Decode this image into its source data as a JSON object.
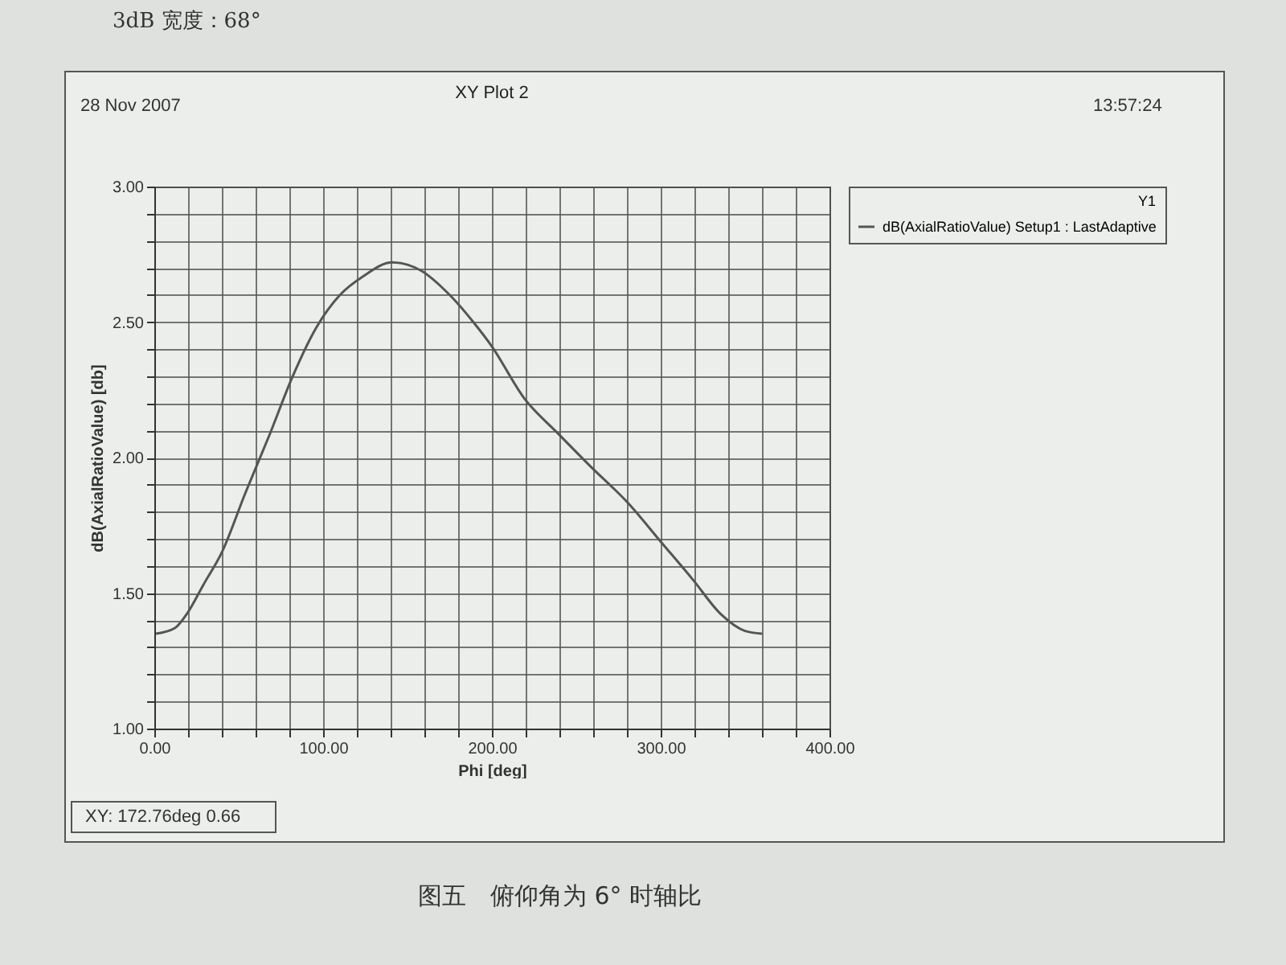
{
  "chart_data": {
    "type": "line",
    "title": "XY Plot 2",
    "xlabel": "Phi [deg]",
    "ylabel": "dB(AxialRatioValue) [db]",
    "legend_title": "Y1",
    "annotations": [
      "3dB 宽度：68°",
      "28 Nov 2007",
      "13:57:24",
      "XY: 172.76deg 0.66",
      "图五　俯仰角为 6° 时轴比"
    ],
    "xlim": [
      0,
      400
    ],
    "ylim": [
      1,
      3
    ],
    "xticks": [
      {
        "value": 0,
        "label": "0.00"
      },
      {
        "value": 20,
        "label": null
      },
      {
        "value": 40,
        "label": null
      },
      {
        "value": 60,
        "label": null
      },
      {
        "value": 80,
        "label": null
      },
      {
        "value": 100,
        "label": "100.00"
      },
      {
        "value": 120,
        "label": null
      },
      {
        "value": 140,
        "label": null
      },
      {
        "value": 160,
        "label": null
      },
      {
        "value": 180,
        "label": null
      },
      {
        "value": 200,
        "label": "200.00"
      },
      {
        "value": 220,
        "label": null
      },
      {
        "value": 240,
        "label": null
      },
      {
        "value": 260,
        "label": null
      },
      {
        "value": 280,
        "label": null
      },
      {
        "value": 300,
        "label": "300.00"
      },
      {
        "value": 320,
        "label": null
      },
      {
        "value": 340,
        "label": null
      },
      {
        "value": 360,
        "label": null
      },
      {
        "value": 380,
        "label": null
      },
      {
        "value": 400,
        "label": "400.00"
      }
    ],
    "yticks": [
      {
        "value": 1,
        "label": "1.00"
      },
      {
        "value": 1.1,
        "label": null
      },
      {
        "value": 1.2,
        "label": null
      },
      {
        "value": 1.3,
        "label": null
      },
      {
        "value": 1.4,
        "label": null
      },
      {
        "value": 1.5,
        "label": "1.50"
      },
      {
        "value": 1.6,
        "label": null
      },
      {
        "value": 1.7,
        "label": null
      },
      {
        "value": 1.8,
        "label": null
      },
      {
        "value": 1.9,
        "label": null
      },
      {
        "value": 2,
        "label": "2.00"
      },
      {
        "value": 2.1,
        "label": null
      },
      {
        "value": 2.2,
        "label": null
      },
      {
        "value": 2.3,
        "label": null
      },
      {
        "value": 2.4,
        "label": null
      },
      {
        "value": 2.5,
        "label": "2.50"
      },
      {
        "value": 2.6,
        "label": null
      },
      {
        "value": 2.7,
        "label": null
      },
      {
        "value": 2.8,
        "label": null
      },
      {
        "value": 2.9,
        "label": null
      },
      {
        "value": 3,
        "label": "3.00"
      }
    ],
    "grid": true,
    "legend": "right",
    "series": [
      {
        "name": "dB(AxialRatioValue) Setup1 : LastAdaptive",
        "color": "#555555",
        "x": [
          1,
          12,
          20,
          29,
          40,
          54,
          68,
          82,
          96,
          110,
          124,
          141,
          158,
          175,
          189,
          200,
          219,
          239,
          258,
          281,
          300,
          319,
          336,
          350,
          360
        ],
        "values": [
          1.35,
          1.37,
          1.43,
          1.53,
          1.65,
          1.87,
          2.08,
          2.3,
          2.48,
          2.6,
          2.67,
          2.72,
          2.69,
          2.6,
          2.5,
          2.41,
          2.22,
          2.09,
          1.97,
          1.83,
          1.69,
          1.55,
          1.42,
          1.36,
          1.35
        ]
      }
    ]
  }
}
